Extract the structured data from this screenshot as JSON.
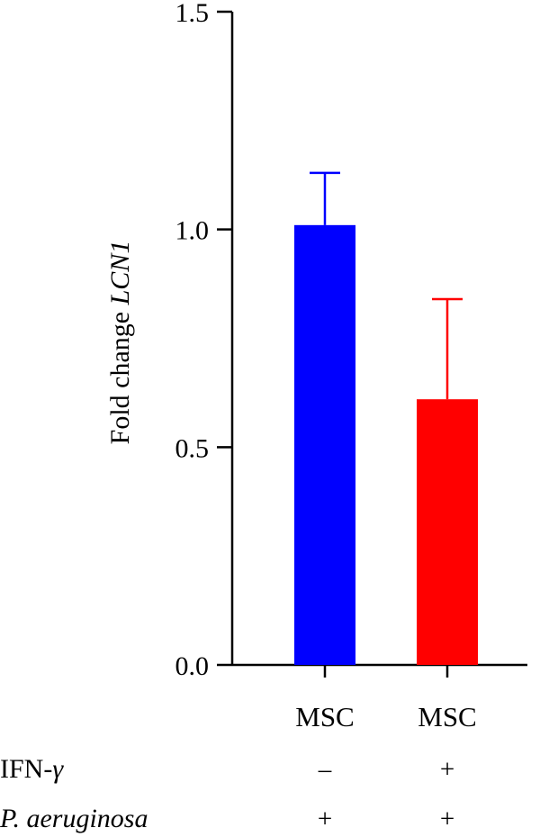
{
  "chart_data": {
    "type": "bar",
    "ylabel_prefix": "Fold change ",
    "ylabel_gene": "LCN1",
    "ylim": [
      0,
      1.5
    ],
    "yticks": [
      {
        "value": 0,
        "label": "0.0"
      },
      {
        "value": 0.5,
        "label": "0.5"
      },
      {
        "value": 1,
        "label": "1.0"
      },
      {
        "value": 1.5,
        "label": "1.5"
      }
    ],
    "categories": [
      "MSC",
      "MSC"
    ],
    "values": [
      1.01,
      0.61
    ],
    "errors": [
      0.12,
      0.23
    ],
    "colors": [
      "#0000FF",
      "#FF0000"
    ],
    "grid": false
  },
  "conditions": [
    {
      "label": "IFN-",
      "label_suffix": "γ",
      "italic": false,
      "values": [
        "–",
        "+"
      ]
    },
    {
      "label": "P. aeruginosa",
      "label_suffix": "",
      "italic": true,
      "values": [
        "+",
        "+"
      ]
    }
  ]
}
